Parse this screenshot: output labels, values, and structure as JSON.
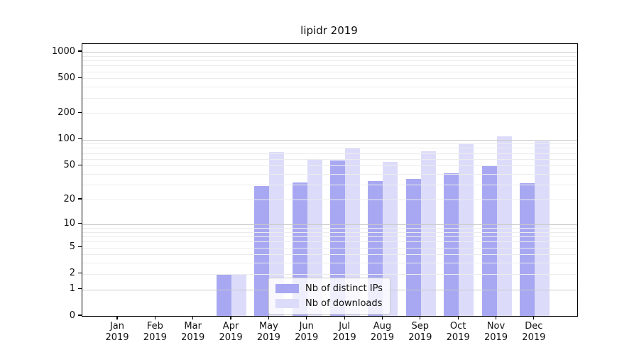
{
  "title": "lipidr 2019",
  "chart_data": {
    "type": "bar",
    "title": "lipidr 2019",
    "categories": [
      "Jan",
      "Feb",
      "Mar",
      "Apr",
      "May",
      "Jun",
      "Jul",
      "Aug",
      "Sep",
      "Oct",
      "Nov",
      "Dec"
    ],
    "category_year": "2019",
    "series": [
      {
        "name": "Nb of distinct IPs",
        "color": "#a8a8f2",
        "values": [
          0,
          0,
          0,
          2,
          29,
          32,
          57,
          33,
          35,
          41,
          49,
          31
        ]
      },
      {
        "name": "Nb of downloads",
        "color": "#dcdcfa",
        "values": [
          0,
          0,
          0,
          2,
          72,
          59,
          79,
          55,
          73,
          91,
          108,
          96
        ]
      }
    ],
    "xlabel": "",
    "ylabel": "",
    "yscale": "log1p",
    "ylim": [
      0,
      1228
    ],
    "yticks": [
      0,
      1,
      2,
      5,
      10,
      20,
      50,
      100,
      200,
      500,
      1000
    ],
    "minor_gridlines": [
      2,
      3,
      4,
      5,
      6,
      7,
      8,
      9,
      20,
      30,
      40,
      50,
      60,
      70,
      80,
      90,
      200,
      300,
      400,
      500,
      600,
      700,
      800,
      900
    ],
    "major_gridlines": [
      1,
      10,
      100,
      1000
    ],
    "grid": true,
    "legend_position": "inside-lower-center",
    "colors": {
      "background": "#ffffff",
      "axis": "#000000",
      "major_grid": "#c8c8c8",
      "minor_grid": "#ececec",
      "bar_ips": "#a8a8f2",
      "bar_downloads": "#dcdcfa"
    }
  }
}
